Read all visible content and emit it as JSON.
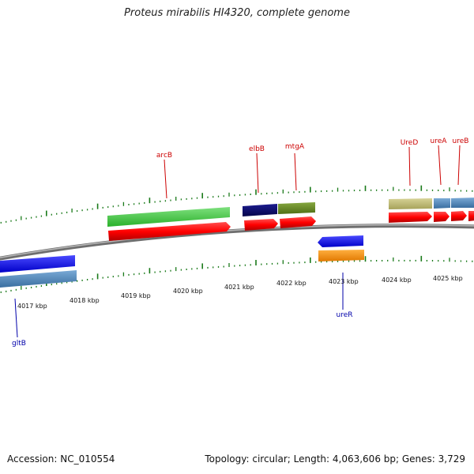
{
  "title": "Proteus mirabilis HI4320, complete genome",
  "footer": {
    "accession": "Accession: NC_010554",
    "summary": "Topology: circular; Length: 4,063,606 bp; Genes: 3,729"
  },
  "colors": {
    "forward_label": "#cc0000",
    "reverse_label": "#0000aa",
    "tick_mark": "#1a7a1a",
    "backbone": "#808080"
  },
  "ruler": {
    "unit": "kbp",
    "labels": [
      "4017 kbp",
      "4018 kbp",
      "4019 kbp",
      "4020 kbp",
      "4021 kbp",
      "4022 kbp",
      "4023 kbp",
      "4024 kbp",
      "4025 kbp"
    ]
  },
  "genes": [
    {
      "name": "arcB",
      "strand": "forward",
      "color": "#3ccc3c"
    },
    {
      "name": "elbB",
      "strand": "forward",
      "color": "#0a0a6e"
    },
    {
      "name": "mtgA",
      "strand": "forward",
      "color": "#6b8e23"
    },
    {
      "name": "UreD",
      "strand": "forward",
      "color": "#bdb76b"
    },
    {
      "name": "ureA",
      "strand": "forward",
      "color": "#4682b4"
    },
    {
      "name": "ureB",
      "strand": "forward",
      "color": "#4682b4"
    },
    {
      "name": "ureR",
      "strand": "reverse",
      "color": "#ff8c00"
    },
    {
      "name": "gltB",
      "strand": "reverse",
      "color": "#4682b4"
    }
  ]
}
